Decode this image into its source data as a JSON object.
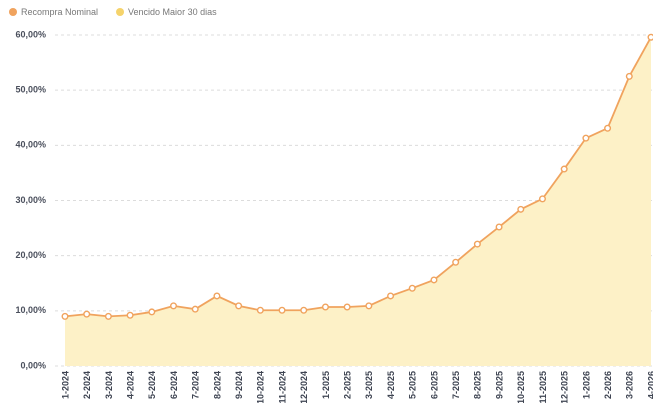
{
  "chart_data": {
    "type": "line",
    "categories": [
      "1-2024",
      "2-2024",
      "3-2024",
      "4-2024",
      "5-2024",
      "6-2024",
      "7-2024",
      "8-2024",
      "9-2024",
      "10-2024",
      "11-2024",
      "12-2024",
      "1-2025",
      "2-2025",
      "3-2025",
      "4-2025",
      "5-2025",
      "6-2025",
      "7-2025",
      "8-2025",
      "9-2025",
      "10-2025",
      "11-2025",
      "12-2025",
      "1-2026",
      "2-2026",
      "3-2026",
      "4-2026"
    ],
    "series": [
      {
        "name": "Recompra Nominal",
        "color": "#f0a35e",
        "style": "line",
        "values": [
          9.0,
          9.4,
          9.0,
          9.2,
          9.8,
          10.9,
          10.3,
          12.7,
          10.9,
          10.1,
          10.1,
          10.1,
          10.7,
          10.7,
          10.9,
          12.7,
          14.1,
          15.6,
          18.8,
          22.1,
          25.2,
          28.4,
          30.3,
          35.7,
          41.3,
          43.1,
          52.5,
          59.6
        ]
      },
      {
        "name": "Vencido Maior 30 dias",
        "color": "#f5d36b",
        "fill": "#fdf1c7",
        "style": "area",
        "values": [
          9.0,
          9.4,
          9.0,
          9.2,
          9.8,
          10.9,
          10.3,
          12.7,
          10.9,
          10.1,
          10.1,
          10.1,
          10.7,
          10.7,
          10.9,
          12.7,
          14.1,
          15.6,
          18.8,
          22.1,
          25.2,
          28.4,
          30.3,
          35.7,
          41.3,
          43.1,
          52.5,
          59.6
        ]
      }
    ],
    "ylim": [
      0,
      60
    ],
    "yticks": [
      {
        "value": 0,
        "label": "0,00%"
      },
      {
        "value": 10,
        "label": "10,00%"
      },
      {
        "value": 20,
        "label": "20,00%"
      },
      {
        "value": 30,
        "label": "30,00%"
      },
      {
        "value": 40,
        "label": "40,00%"
      },
      {
        "value": 50,
        "label": "50,00%"
      },
      {
        "value": 60,
        "label": "60,00%"
      }
    ],
    "grid": true
  }
}
